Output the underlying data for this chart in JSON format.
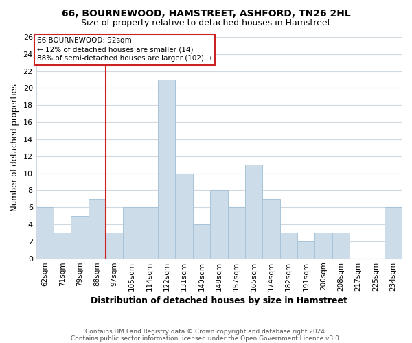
{
  "title": "66, BOURNEWOOD, HAMSTREET, ASHFORD, TN26 2HL",
  "subtitle": "Size of property relative to detached houses in Hamstreet",
  "xlabel": "Distribution of detached houses by size in Hamstreet",
  "ylabel": "Number of detached properties",
  "bin_labels": [
    "62sqm",
    "71sqm",
    "79sqm",
    "88sqm",
    "97sqm",
    "105sqm",
    "114sqm",
    "122sqm",
    "131sqm",
    "140sqm",
    "148sqm",
    "157sqm",
    "165sqm",
    "174sqm",
    "182sqm",
    "191sqm",
    "200sqm",
    "208sqm",
    "217sqm",
    "225sqm",
    "234sqm"
  ],
  "bar_heights": [
    6,
    3,
    5,
    7,
    3,
    6,
    6,
    21,
    10,
    4,
    8,
    6,
    11,
    7,
    3,
    2,
    3,
    3,
    0,
    0,
    6
  ],
  "bar_color": "#ccdce8",
  "bar_edge_color": "#a8c4d8",
  "annotation_title": "66 BOURNEWOOD: 92sqm",
  "annotation_line1": "← 12% of detached houses are smaller (14)",
  "annotation_line2": "88% of semi-detached houses are larger (102) →",
  "annotation_box_color": "#ffffff",
  "annotation_box_edge_color": "#cc2222",
  "vline_color": "#cc2222",
  "vline_x_index": 3.5,
  "ylim": [
    0,
    26
  ],
  "yticks": [
    0,
    2,
    4,
    6,
    8,
    10,
    12,
    14,
    16,
    18,
    20,
    22,
    24,
    26
  ],
  "footer1": "Contains HM Land Registry data © Crown copyright and database right 2024.",
  "footer2": "Contains public sector information licensed under the Open Government Licence v3.0.",
  "bg_color": "#ffffff",
  "grid_color": "#d0d8e0"
}
